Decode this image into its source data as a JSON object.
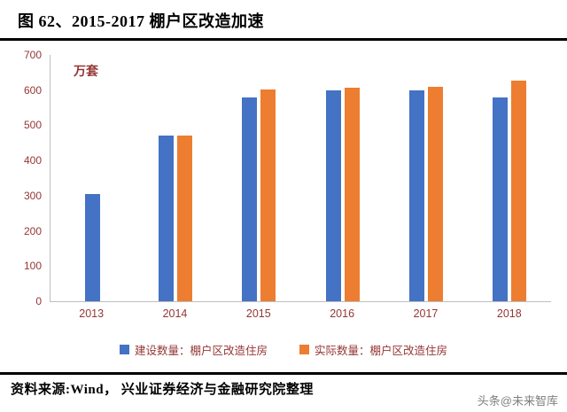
{
  "header": {
    "title": "图 62、2015-2017 棚户区改造加速"
  },
  "chart": {
    "unit_label": "万套"
  },
  "chart_data": {
    "type": "bar",
    "title": "2015-2017 棚户区改造加速",
    "categories": [
      "2013",
      "2014",
      "2015",
      "2016",
      "2017",
      "2018"
    ],
    "series": [
      {
        "name": "建设数量：棚户区改造住房",
        "color": "#4472C4",
        "values": [
          304,
          470,
          580,
          600,
          600,
          580
        ]
      },
      {
        "name": "实际数量：棚户区改造住房",
        "color": "#ED7D31",
        "values": [
          null,
          470,
          601,
          606,
          609,
          626
        ]
      }
    ],
    "xlabel": "",
    "ylabel": "万套",
    "ylim": [
      0,
      700
    ],
    "y_ticks": [
      0,
      100,
      200,
      300,
      400,
      500,
      600,
      700
    ],
    "grid": false,
    "legend_position": "bottom",
    "axis_label_color": "#943634"
  },
  "footer": {
    "source": "资料来源:Wind， 兴业证券经济与金融研究院整理",
    "watermark": "头条@未来智库"
  }
}
